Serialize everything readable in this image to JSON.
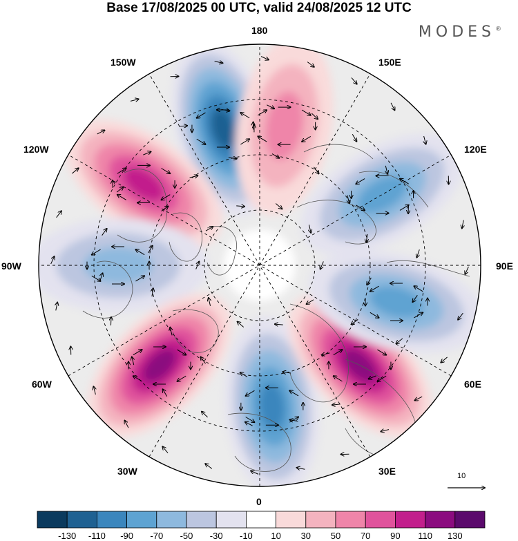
{
  "title": "Base 17/08/2025 00 UTC, valid 24/08/2025 12 UTC",
  "brand": "MODES",
  "brand_mark": "®",
  "longitude_labels": {
    "n180": "180",
    "w150": "150W",
    "e150": "150E",
    "w120": "120W",
    "e120": "120E",
    "w90": "90W",
    "e90": "90E",
    "w60": "60W",
    "e60": "60E",
    "w30": "30W",
    "e30": "30E",
    "s0": "0"
  },
  "reference_vector": "10",
  "colorbar": {
    "colors": [
      "#0b3a5e",
      "#1f6192",
      "#3b86bd",
      "#5ea3d2",
      "#8eb9de",
      "#bcc6e0",
      "#e3e2ef",
      "#ffffff",
      "#f9dada",
      "#f4b3bf",
      "#ef85a9",
      "#e0539c",
      "#c21f8c",
      "#8b0c7f",
      "#5b0a6c"
    ],
    "labels": [
      "-130",
      "-110",
      "-90",
      "-70",
      "-50",
      "-30",
      "-10",
      "10",
      "30",
      "50",
      "70",
      "90",
      "110",
      "130"
    ]
  },
  "anomaly_centers": [
    {
      "sign": "negative",
      "strength": 0.95,
      "lon_label": "165W"
    },
    {
      "sign": "positive",
      "strength": 0.9,
      "lon_label": "125W"
    },
    {
      "sign": "negative",
      "strength": 0.55,
      "lon_label": "90W"
    },
    {
      "sign": "positive",
      "strength": 1.0,
      "lon_label": "45W"
    },
    {
      "sign": "negative",
      "strength": 0.85,
      "lon_label": "5E"
    },
    {
      "sign": "positive",
      "strength": 0.95,
      "lon_label": "45E"
    },
    {
      "sign": "negative",
      "strength": 0.7,
      "lon_label": "75E"
    },
    {
      "sign": "negative",
      "strength": 0.6,
      "lon_label": "120E"
    },
    {
      "sign": "positive",
      "strength": 0.45,
      "lon_label": "170E"
    }
  ]
}
